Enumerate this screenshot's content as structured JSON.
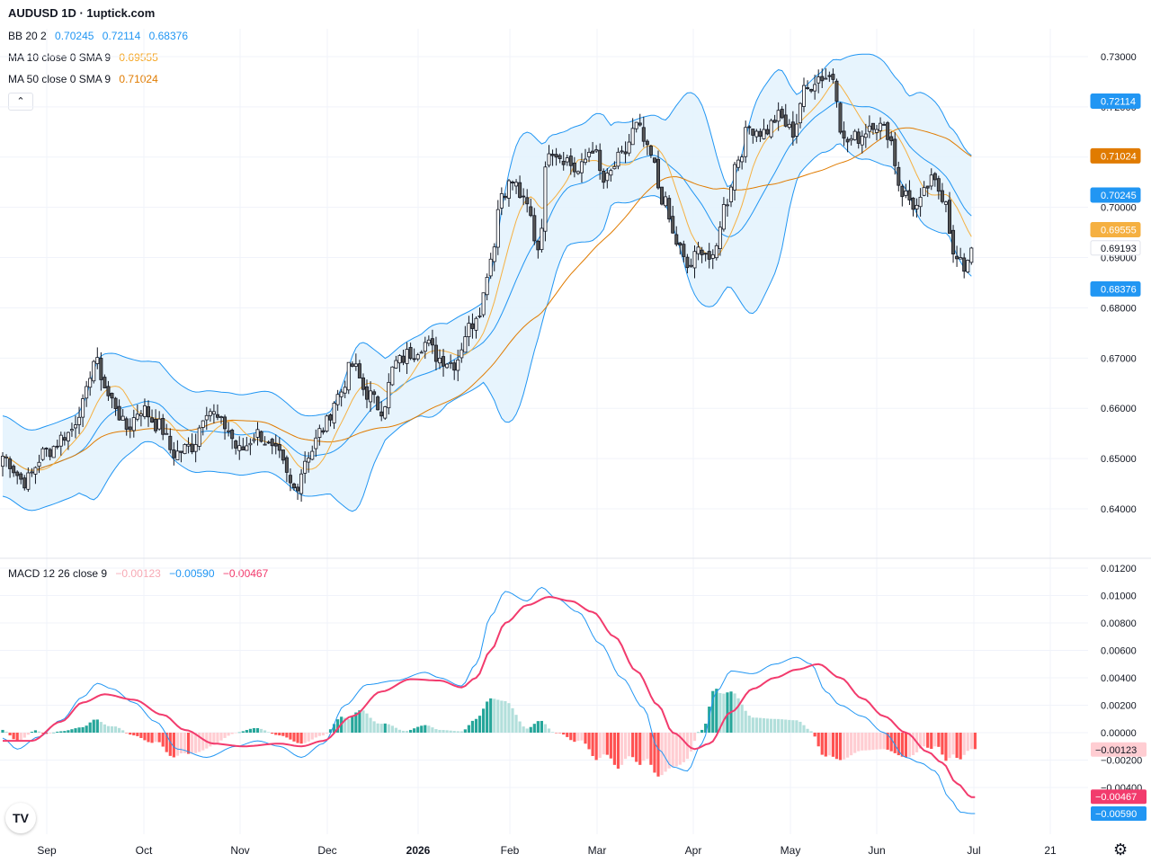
{
  "header": {
    "title": "AUDUSD 1D · 1uptick.com",
    "indicators": [
      {
        "label": "BB 20 2",
        "values": [
          "0.70245",
          "0.72114",
          "0.68376"
        ],
        "colors": [
          "#2196f3",
          "#2196f3",
          "#2196f3"
        ]
      },
      {
        "label": "MA 10 close 0 SMA 9",
        "values": [
          "0.69555"
        ],
        "colors": [
          "#f5a623"
        ]
      },
      {
        "label": "MA 50 close 0 SMA 9",
        "values": [
          "0.71024"
        ],
        "colors": [
          "#e07b00"
        ]
      }
    ],
    "collapse_icon": "chevron-up-icon"
  },
  "macd_legend": {
    "label": "MACD 12 26 close 9",
    "values": [
      "−0.00123",
      "−0.00590",
      "−0.00467"
    ],
    "colors": [
      "#f7a9b4",
      "#2196f3",
      "#f23b6d"
    ]
  },
  "colors": {
    "bb_band": "#2196f3",
    "bb_fill": "#e3f2fd",
    "ma10": "#f5b041",
    "ma50": "#e07b00",
    "candle_up": "#ffffff",
    "candle_down": "#555555",
    "macd_line": "#2196f3",
    "signal_line": "#f23b6d",
    "hist_pos_strong": "#26a69a",
    "hist_pos_weak": "#b2dfdb",
    "hist_neg_strong": "#ff5252",
    "hist_neg_weak": "#ffcdd2"
  },
  "chart_data": [
    {
      "type": "candlestick",
      "title": "AUDUSD 1D",
      "price_axis_ticks": [
        "0.73000",
        "0.72000",
        "0.71000",
        "0.70000",
        "0.69000",
        "0.68000",
        "0.67000",
        "0.66000",
        "0.65000",
        "0.64000"
      ],
      "ylim": [
        0.633,
        0.7325
      ],
      "x_axis_labels": [
        "Sep",
        "Oct",
        "Nov",
        "Dec",
        "2026",
        "Feb",
        "Mar",
        "Apr",
        "May",
        "Jun",
        "Jul",
        "21"
      ],
      "bars_per_month_approx": 22,
      "last_price": "0.69193",
      "price_labels": [
        {
          "value": "0.72114",
          "series": "BB upper",
          "color": "#2196f3"
        },
        {
          "value": "0.71024",
          "series": "MA 50",
          "color": "#e07b00"
        },
        {
          "value": "0.70245",
          "series": "BB basis",
          "color": "#2196f3"
        },
        {
          "value": "0.69555",
          "series": "MA 10",
          "color": "#f5b041"
        },
        {
          "value": "0.69193",
          "series": "Close",
          "color": "#ffffff"
        },
        {
          "value": "0.68376",
          "series": "BB lower",
          "color": "#2196f3"
        }
      ],
      "close_anchors": [
        [
          0,
          0.6505
        ],
        [
          6,
          0.6455
        ],
        [
          12,
          0.6515
        ],
        [
          18,
          0.655
        ],
        [
          22,
          0.6605
        ],
        [
          25,
          0.6695
        ],
        [
          30,
          0.6615
        ],
        [
          34,
          0.656
        ],
        [
          38,
          0.66
        ],
        [
          43,
          0.6565
        ],
        [
          47,
          0.651
        ],
        [
          52,
          0.6525
        ],
        [
          56,
          0.66
        ],
        [
          61,
          0.6565
        ],
        [
          65,
          0.6515
        ],
        [
          70,
          0.655
        ],
        [
          75,
          0.651
        ],
        [
          80,
          0.644
        ],
        [
          84,
          0.651
        ],
        [
          88,
          0.656
        ],
        [
          92,
          0.6625
        ],
        [
          96,
          0.6685
        ],
        [
          100,
          0.663
        ],
        [
          104,
          0.66
        ],
        [
          108,
          0.669
        ],
        [
          112,
          0.671
        ],
        [
          116,
          0.673
        ],
        [
          120,
          0.67
        ],
        [
          124,
          0.669
        ],
        [
          128,
          0.676
        ],
        [
          131,
          0.68
        ],
        [
          134,
          0.69
        ],
        [
          137,
          0.703
        ],
        [
          140,
          0.705
        ],
        [
          144,
          0.7
        ],
        [
          147,
          0.692
        ],
        [
          150,
          0.712
        ],
        [
          154,
          0.71
        ],
        [
          158,
          0.707
        ],
        [
          162,
          0.712
        ],
        [
          165,
          0.705
        ],
        [
          170,
          0.71
        ],
        [
          174,
          0.716
        ],
        [
          178,
          0.71
        ],
        [
          181,
          0.702
        ],
        [
          185,
          0.693
        ],
        [
          188,
          0.688
        ],
        [
          192,
          0.692
        ],
        [
          195,
          0.689
        ],
        [
          198,
          0.7
        ],
        [
          202,
          0.71
        ],
        [
          205,
          0.716
        ],
        [
          209,
          0.715
        ],
        [
          213,
          0.718
        ],
        [
          217,
          0.715
        ],
        [
          220,
          0.723
        ],
        [
          224,
          0.726
        ],
        [
          228,
          0.726
        ],
        [
          231,
          0.713
        ],
        [
          235,
          0.714
        ],
        [
          239,
          0.717
        ],
        [
          243,
          0.715
        ],
        [
          247,
          0.703
        ],
        [
          251,
          0.7
        ],
        [
          255,
          0.705
        ],
        [
          259,
          0.702
        ],
        [
          261,
          0.69
        ],
        [
          264,
          0.688
        ],
        [
          266,
          0.6919
        ]
      ]
    },
    {
      "type": "macd",
      "title": "MACD 12 26 close 9",
      "axis_ticks": [
        "0.01200",
        "0.01000",
        "0.00800",
        "0.00600",
        "0.00400",
        "0.00200",
        "0.00000",
        "−0.00200",
        "−0.00400"
      ],
      "ylim": [
        -0.0061,
        0.0122
      ],
      "macd_anchors": [
        [
          0,
          -0.0004
        ],
        [
          4,
          -0.0012
        ],
        [
          10,
          -0.0003
        ],
        [
          16,
          0.0009
        ],
        [
          22,
          0.0026
        ],
        [
          26,
          0.0036
        ],
        [
          30,
          0.0032
        ],
        [
          36,
          0.0022
        ],
        [
          42,
          0.0008
        ],
        [
          48,
          -0.0012
        ],
        [
          56,
          -0.0018
        ],
        [
          64,
          -0.001
        ],
        [
          70,
          -0.0006
        ],
        [
          76,
          -0.001
        ],
        [
          82,
          -0.0018
        ],
        [
          88,
          -0.0008
        ],
        [
          94,
          0.002
        ],
        [
          100,
          0.0035
        ],
        [
          108,
          0.0038
        ],
        [
          116,
          0.0044
        ],
        [
          120,
          0.004
        ],
        [
          126,
          0.0034
        ],
        [
          130,
          0.005
        ],
        [
          134,
          0.0085
        ],
        [
          138,
          0.0103
        ],
        [
          144,
          0.0096
        ],
        [
          148,
          0.0106
        ],
        [
          152,
          0.0098
        ],
        [
          158,
          0.0088
        ],
        [
          164,
          0.0065
        ],
        [
          170,
          0.004
        ],
        [
          176,
          0.0018
        ],
        [
          180,
          -0.0012
        ],
        [
          184,
          -0.0025
        ],
        [
          188,
          -0.0028
        ],
        [
          192,
          -0.0008
        ],
        [
          196,
          0.003
        ],
        [
          200,
          0.0045
        ],
        [
          206,
          0.0043
        ],
        [
          212,
          0.005
        ],
        [
          218,
          0.0055
        ],
        [
          222,
          0.005
        ],
        [
          226,
          0.003
        ],
        [
          230,
          0.002
        ],
        [
          236,
          0.0012
        ],
        [
          242,
          0.0
        ],
        [
          248,
          -0.0018
        ],
        [
          252,
          -0.0022
        ],
        [
          256,
          -0.0028
        ],
        [
          260,
          -0.0048
        ],
        [
          263,
          -0.0058
        ],
        [
          266,
          -0.0059
        ]
      ],
      "signal_anchors": [
        [
          0,
          -0.0006
        ],
        [
          8,
          -0.0006
        ],
        [
          16,
          0.0008
        ],
        [
          22,
          0.0022
        ],
        [
          28,
          0.0028
        ],
        [
          36,
          0.0024
        ],
        [
          44,
          0.0013
        ],
        [
          50,
          0.0002
        ],
        [
          58,
          -0.0008
        ],
        [
          66,
          -0.001
        ],
        [
          76,
          -0.0008
        ],
        [
          82,
          -0.001
        ],
        [
          88,
          -0.0006
        ],
        [
          96,
          0.0012
        ],
        [
          104,
          0.003
        ],
        [
          112,
          0.0039
        ],
        [
          120,
          0.0038
        ],
        [
          126,
          0.0033
        ],
        [
          130,
          0.004
        ],
        [
          134,
          0.006
        ],
        [
          138,
          0.008
        ],
        [
          144,
          0.0093
        ],
        [
          150,
          0.0099
        ],
        [
          156,
          0.0096
        ],
        [
          162,
          0.0088
        ],
        [
          168,
          0.007
        ],
        [
          174,
          0.0045
        ],
        [
          180,
          0.002
        ],
        [
          184,
          0.0
        ],
        [
          190,
          -0.0012
        ],
        [
          194,
          -0.0008
        ],
        [
          200,
          0.0015
        ],
        [
          206,
          0.0032
        ],
        [
          212,
          0.004
        ],
        [
          218,
          0.0046
        ],
        [
          224,
          0.005
        ],
        [
          230,
          0.004
        ],
        [
          236,
          0.0025
        ],
        [
          242,
          0.0012
        ],
        [
          248,
          0.0
        ],
        [
          254,
          -0.0014
        ],
        [
          258,
          -0.0022
        ],
        [
          262,
          -0.0037
        ],
        [
          266,
          -0.0047
        ]
      ]
    }
  ]
}
